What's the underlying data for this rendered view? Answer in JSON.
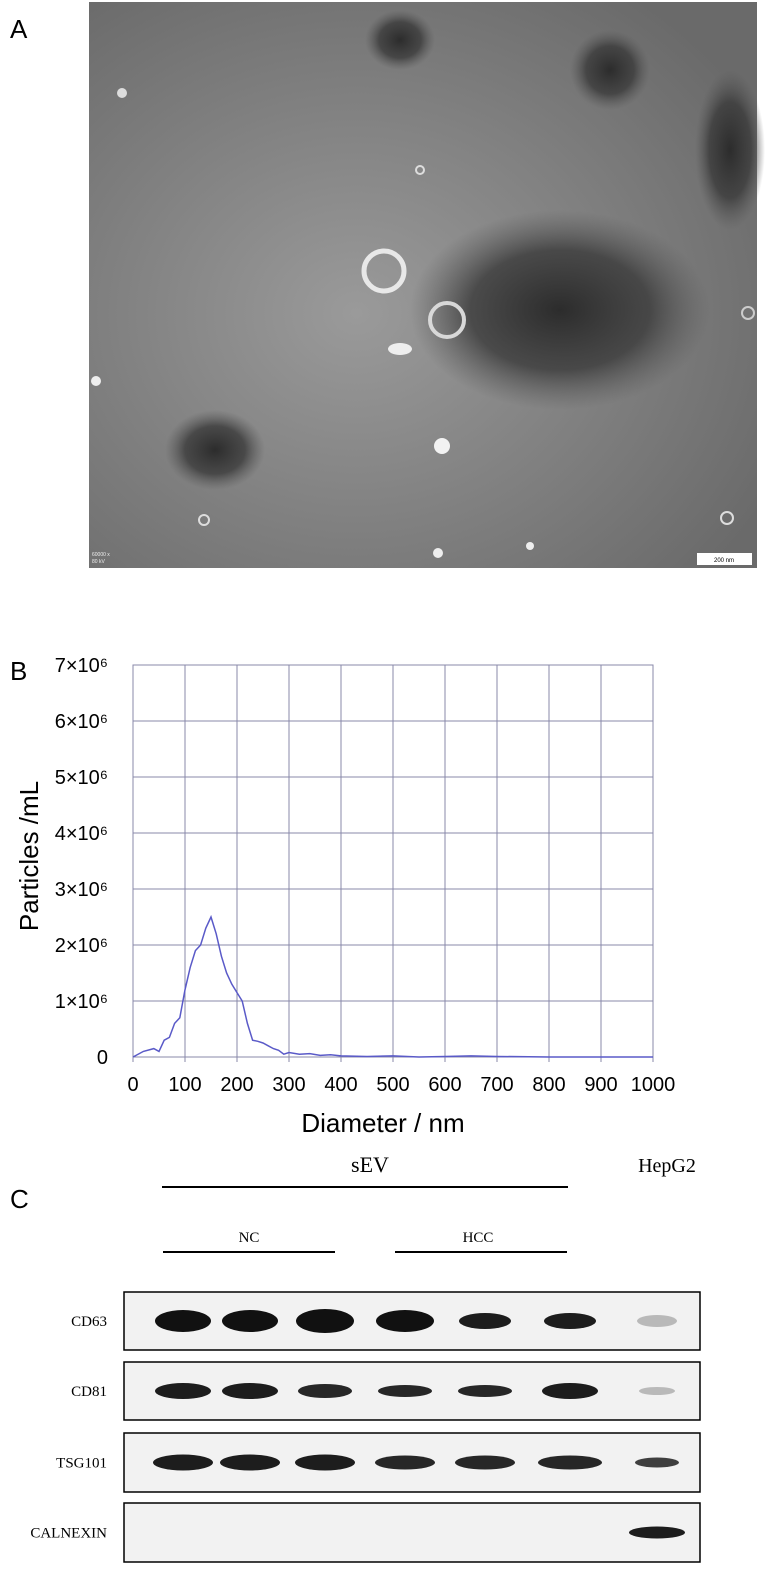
{
  "panel_labels": [
    "A",
    "B",
    "C"
  ],
  "micrograph": {
    "magnification": "60000 x",
    "voltage": "80 kV",
    "scale_bar": "200 nm"
  },
  "chart_data": {
    "type": "line",
    "xlabel": "Diameter / nm",
    "ylabel": "Particles /mL",
    "color": "#5a5ac8",
    "grid": true,
    "xlim": [
      0,
      1000
    ],
    "xticks": [
      0,
      100,
      200,
      300,
      400,
      500,
      600,
      700,
      800,
      900,
      1000
    ],
    "ylim": [
      0,
      7000000
    ],
    "yticks": [
      0,
      {
        "value": 1000000,
        "label": "1×10⁶"
      },
      {
        "value": 2000000,
        "label": "2×10⁶"
      },
      {
        "value": 3000000,
        "label": "3×10⁶"
      },
      {
        "value": 4000000,
        "label": "4×10⁶"
      },
      {
        "value": 5000000,
        "label": "5×10⁶"
      },
      {
        "value": 6000000,
        "label": "6×10⁶"
      },
      {
        "value": 7000000,
        "label": "7×10⁶"
      }
    ],
    "x": [
      0,
      20,
      40,
      50,
      60,
      70,
      80,
      90,
      100,
      110,
      120,
      130,
      140,
      150,
      160,
      170,
      180,
      190,
      200,
      210,
      220,
      230,
      240,
      250,
      260,
      270,
      280,
      290,
      300,
      320,
      340,
      360,
      380,
      400,
      450,
      500,
      550,
      600,
      650,
      700,
      800,
      900,
      1000
    ],
    "values": [
      0,
      100000,
      150000,
      100000,
      300000,
      350000,
      600000,
      700000,
      1200000,
      1600000,
      1900000,
      2000000,
      2300000,
      2500000,
      2200000,
      1800000,
      1500000,
      1300000,
      1150000,
      1000000,
      600000,
      300000,
      280000,
      250000,
      200000,
      150000,
      120000,
      50000,
      80000,
      50000,
      60000,
      30000,
      40000,
      20000,
      10000,
      20000,
      0,
      10000,
      20000,
      10000,
      0,
      0,
      0
    ]
  },
  "blot": {
    "group_label": "sEV",
    "subgroups": [
      "NC",
      "HCC"
    ],
    "cell_line": "HepG2",
    "rows": [
      "CD63",
      "CD81",
      "TSG101",
      "CALNEXIN"
    ]
  }
}
